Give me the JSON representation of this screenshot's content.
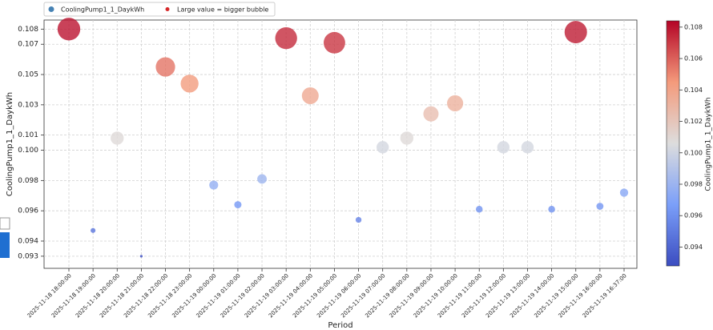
{
  "chart_data": {
    "type": "scatter",
    "xlabel": "Period",
    "ylabel": "CoolingPump1_1_DaykWh",
    "categories": [
      "2025-11-18 18:00:00",
      "2025-11-18 19:00:00",
      "2025-11-18 20:00:00",
      "2025-11-18 21:00:00",
      "2025-11-18 22:00:00",
      "2025-11-18 23:00:00",
      "2025-11-19 00:00:00",
      "2025-11-19 01:00:00",
      "2025-11-19 02:00:00",
      "2025-11-19 03:00:00",
      "2025-11-19 04:00:00",
      "2025-11-19 05:00:00",
      "2025-11-19 06:00:00",
      "2025-11-19 07:00:00",
      "2025-11-19 08:00:00",
      "2025-11-19 09:00:00",
      "2025-11-19 10:00:00",
      "2025-11-19 11:00:00",
      "2025-11-19 12:00:00",
      "2025-11-19 13:00:00",
      "2025-11-19 14:00:00",
      "2025-11-19 15:00:00",
      "2025-11-19 16:00:00",
      "2025-11-19 16:37:00"
    ],
    "series": [
      {
        "name": "CoolingPump1_1_DaykWh",
        "color": "#4682b4",
        "values": [
          0.108,
          0.0947,
          0.1008,
          0.093,
          0.1055,
          0.1044,
          0.0977,
          0.0964,
          0.0981,
          0.1074,
          0.1036,
          0.1071,
          0.0954,
          0.1002,
          0.1008,
          0.1024,
          0.1031,
          0.0961,
          0.1002,
          0.1002,
          0.0961,
          0.1078,
          0.0963,
          0.0972
        ]
      }
    ],
    "size_note": {
      "name": "Large value = bigger bubble",
      "color": "#d62728"
    },
    "ylim": [
      0.0922,
      0.1086
    ],
    "yticks": [
      0.093,
      0.094,
      0.096,
      0.098,
      {
        "value": 0.1,
        "label": "0.100"
      },
      0.101,
      0.103,
      0.105,
      0.107,
      0.108
    ],
    "grid": true,
    "colorbar": {
      "label": "CoolingPump1_1_DaykWh",
      "lim": [
        0.0928,
        0.1084
      ],
      "ticks": [
        0.094,
        0.096,
        0.098,
        {
          "value": 0.1,
          "label": "0.100"
        },
        0.102,
        0.104,
        0.106,
        0.108
      ],
      "colormap": [
        "#3b4cc0",
        "#7b9ff9",
        "#dddddd",
        "#f49a7b",
        "#b40426"
      ]
    }
  }
}
